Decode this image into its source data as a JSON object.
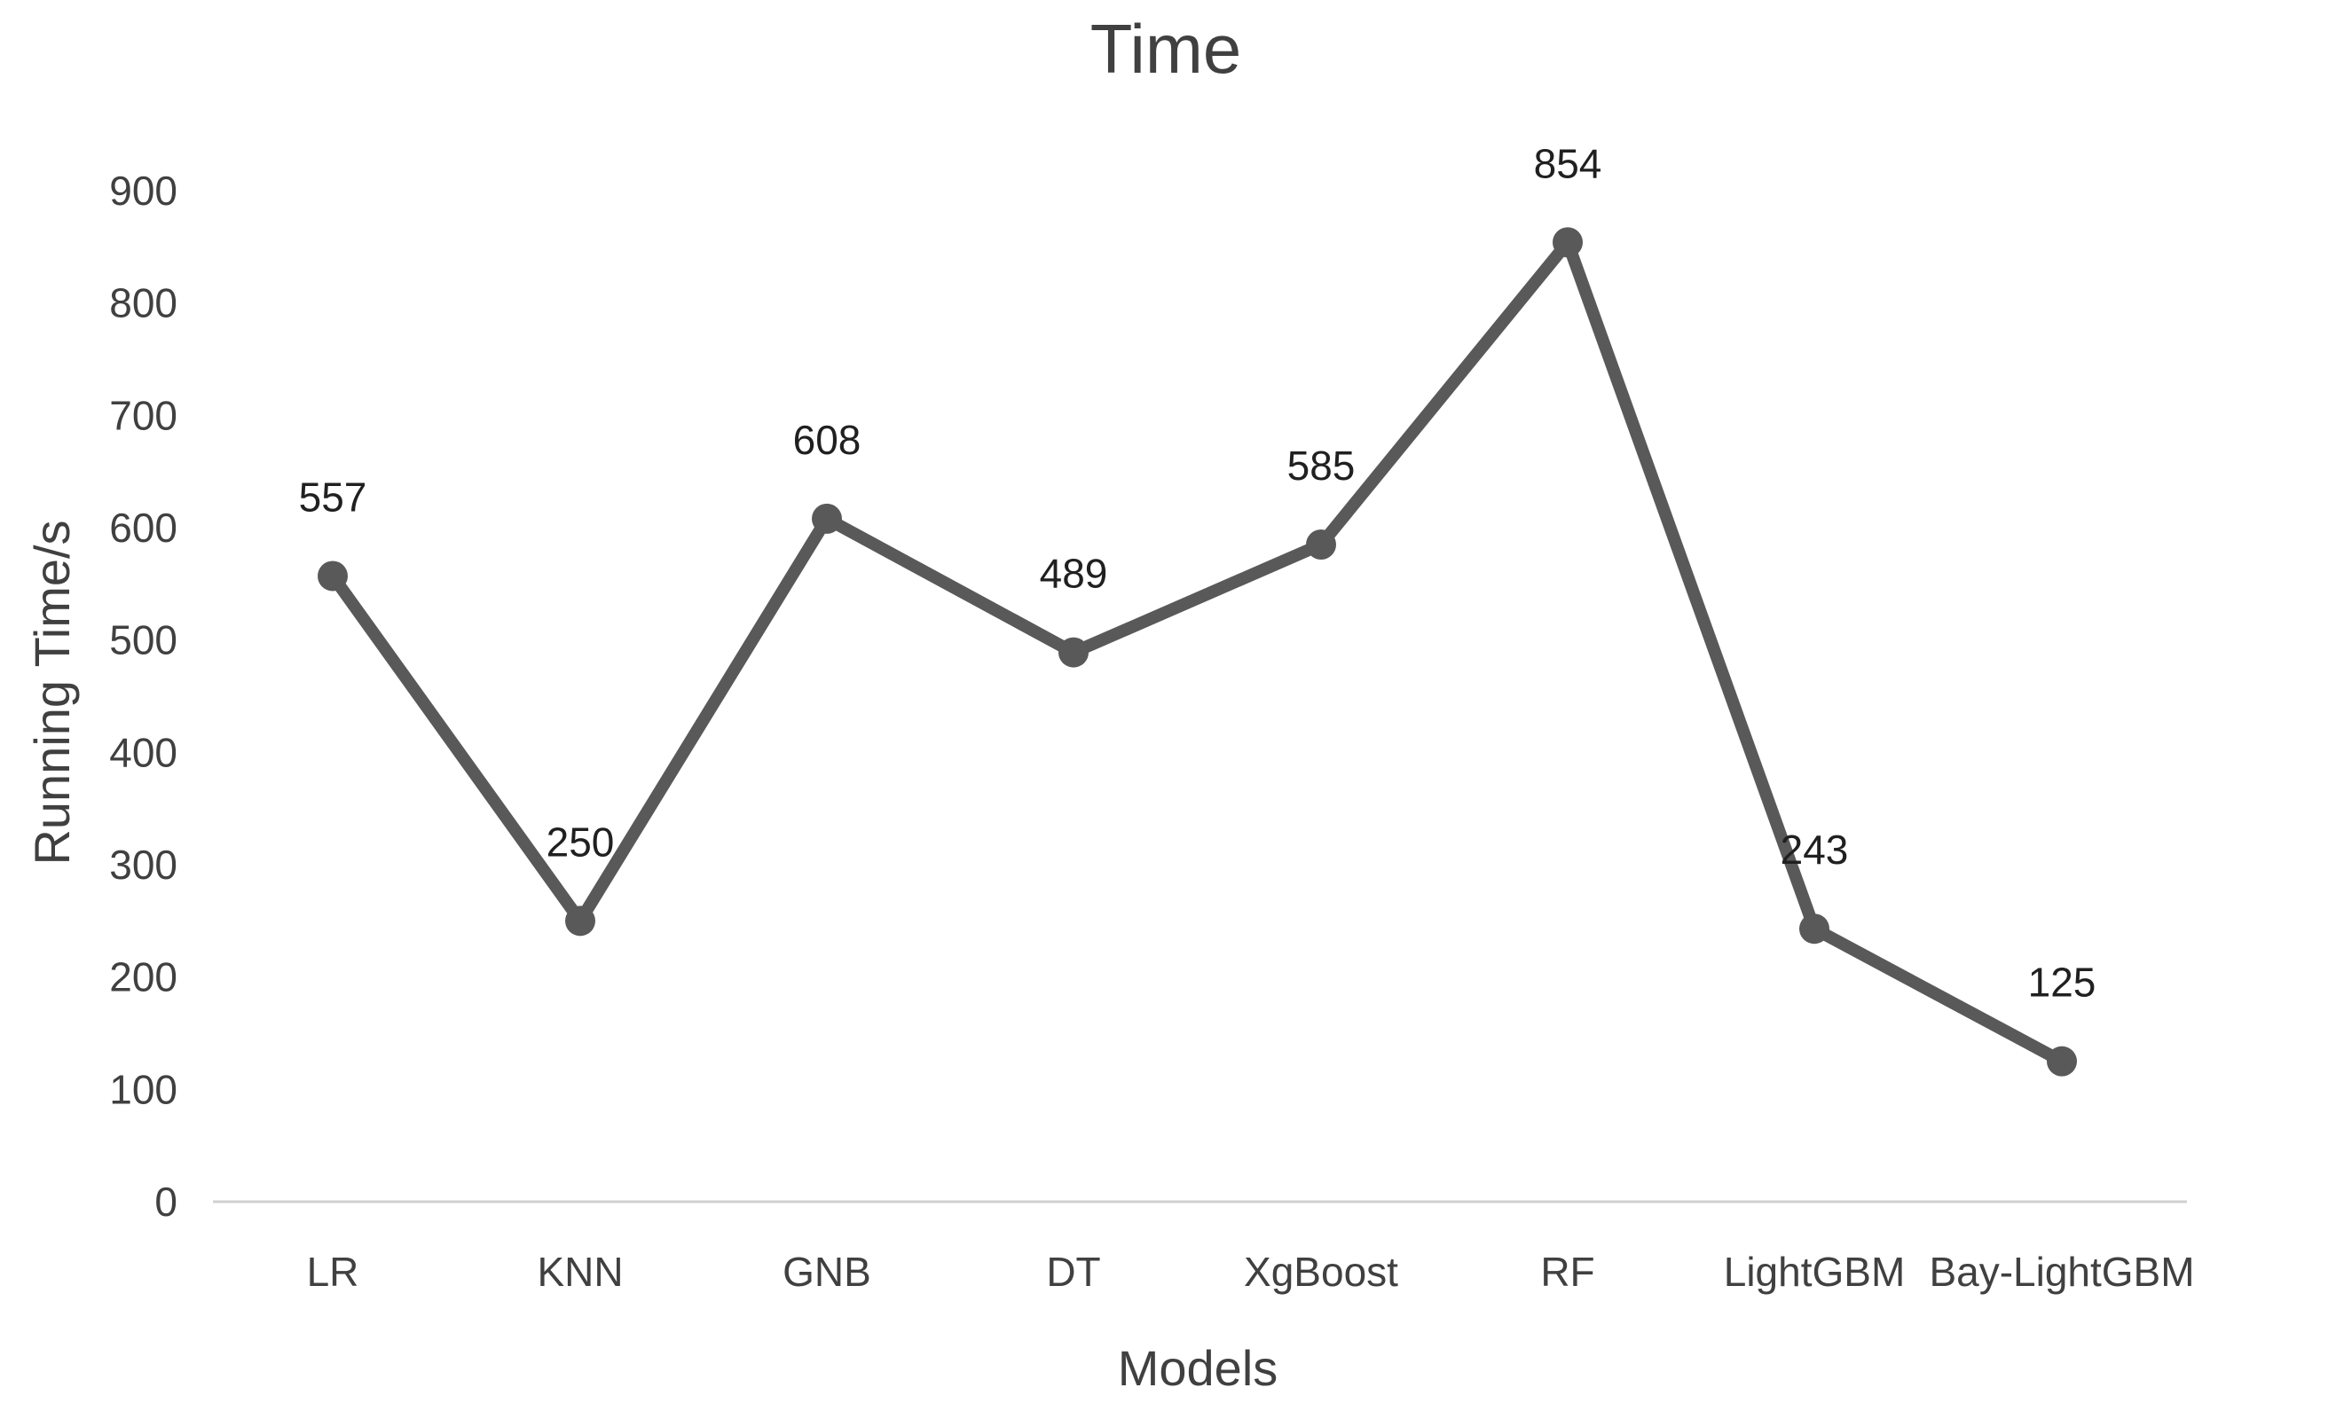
{
  "chart_data": {
    "type": "line",
    "title": "Time",
    "xlabel": "Models",
    "ylabel": "Running Time/s",
    "categories": [
      "LR",
      "KNN",
      "GNB",
      "DT",
      "XgBoost",
      "RF",
      "LightGBM",
      "Bay-LightGBM"
    ],
    "series": [
      {
        "values": [
          557,
          250,
          608,
          489,
          585,
          854,
          243,
          125
        ],
        "color": "#595959"
      }
    ],
    "ylim": [
      0,
      900
    ],
    "yticks": [
      0,
      100,
      200,
      300,
      400,
      500,
      600,
      700,
      800,
      900
    ],
    "grid": false,
    "legend": "none",
    "data_labels": true
  }
}
